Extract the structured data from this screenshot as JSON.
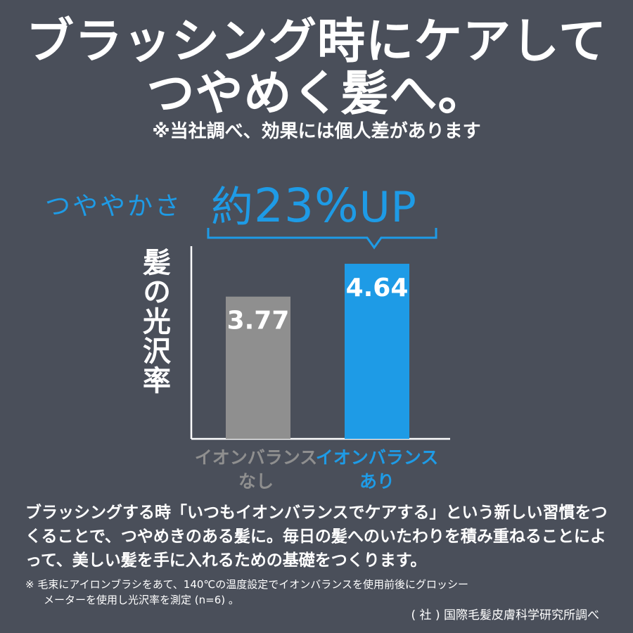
{
  "title": {
    "line1": "ブラッシング時にケアして",
    "line2": "つやめく髪へ。"
  },
  "disclaimer": "※当社調べ、効果には個人差があります",
  "headline": {
    "prefix": "つややかさ",
    "value_prefix": "約",
    "value_number": "23%",
    "value_suffix": "UP"
  },
  "colors": {
    "background": "#4a4f5a",
    "accent_blue": "#1e9be6",
    "bar_gray": "#8f8f8f",
    "text": "#ffffff"
  },
  "chart_data": {
    "type": "bar",
    "ylabel": "髪の光沢率",
    "xlabel": "",
    "categories": [
      [
        "イオンバランス",
        "なし"
      ],
      [
        "イオンバランス",
        "あり"
      ]
    ],
    "values": [
      3.77,
      4.64
    ],
    "value_labels": [
      "3.77",
      "4.64"
    ],
    "bar_colors": [
      "#8f8f8f",
      "#1e9be6"
    ],
    "ylim": [
      0,
      5.2
    ],
    "grid": false,
    "legend": "none",
    "annotation": "つややかさ 約23%UP"
  },
  "body_text": "ブラッシングする時「いつもイオンバランスでケアする」という新しい習慣をつくることで、つやめきのある髪に。毎日の髪へのいたわりを積み重ねることによって、美しい髪を手に入れるための基礎をつくります。",
  "note": {
    "line1": "※ 毛束にアイロンブラシをあて、140℃の温度設定でイオンバランスを使用前後にグロッシー",
    "line2": "メーターを使用し光沢率を測定 (n=6) 。"
  },
  "source": "( 社 ) 国際毛髪皮膚科学研究所調べ"
}
